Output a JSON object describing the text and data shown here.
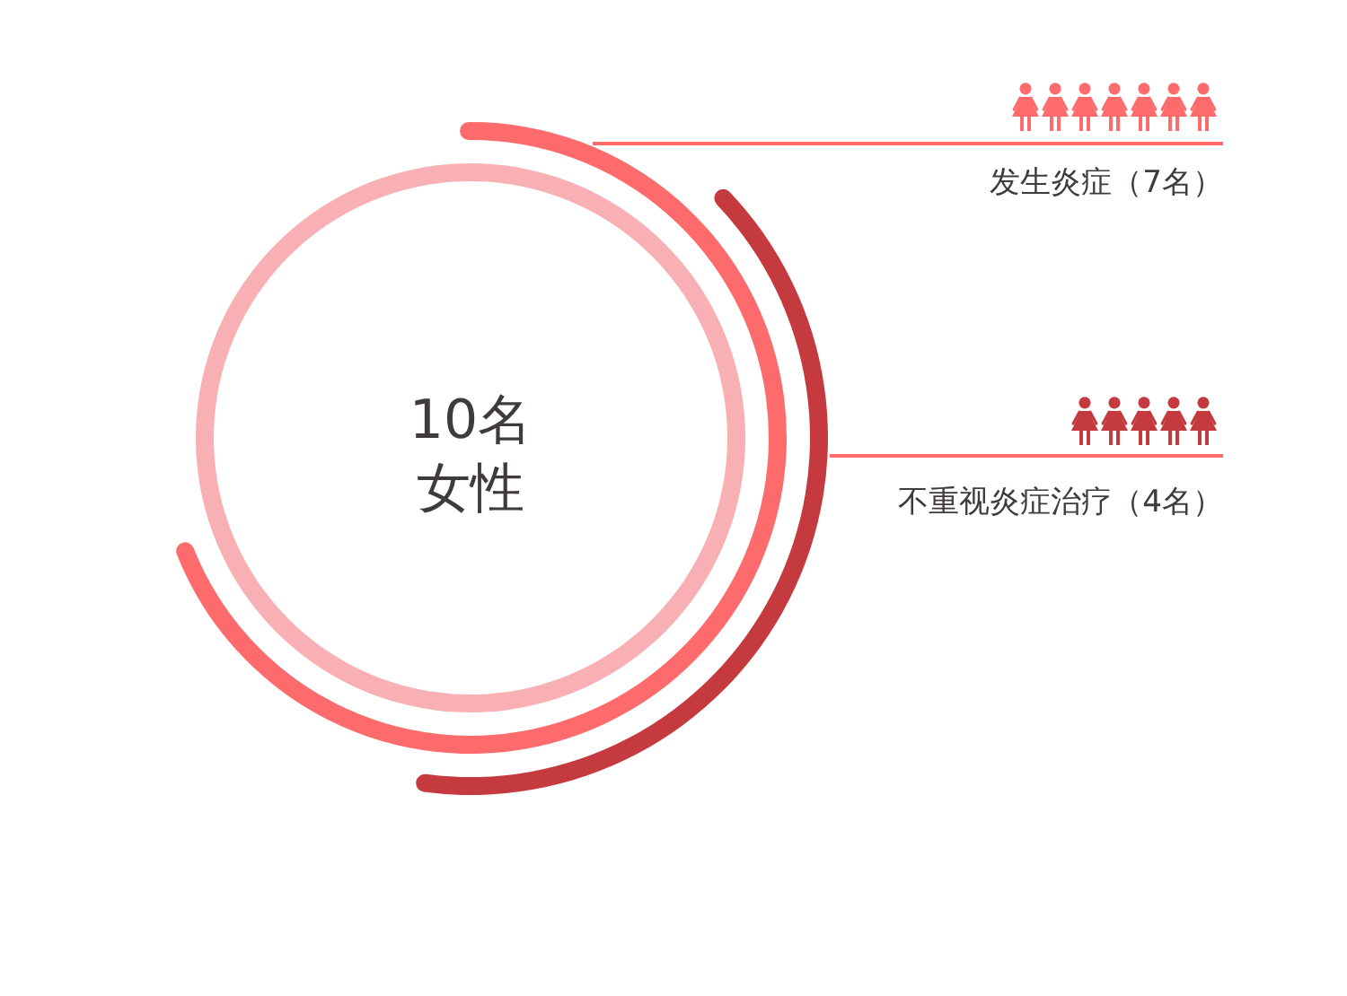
{
  "chart_data": {
    "type": "other",
    "categories": [
      "女性",
      "发生炎症",
      "不重视炎症治疗"
    ],
    "values": [
      10,
      7,
      4
    ],
    "value_labels": [
      "10名",
      "（7名）",
      "（4名）"
    ],
    "colors": [
      "#f9b0b4",
      "#fd6b6d",
      "#c43a3f"
    ]
  }
}
